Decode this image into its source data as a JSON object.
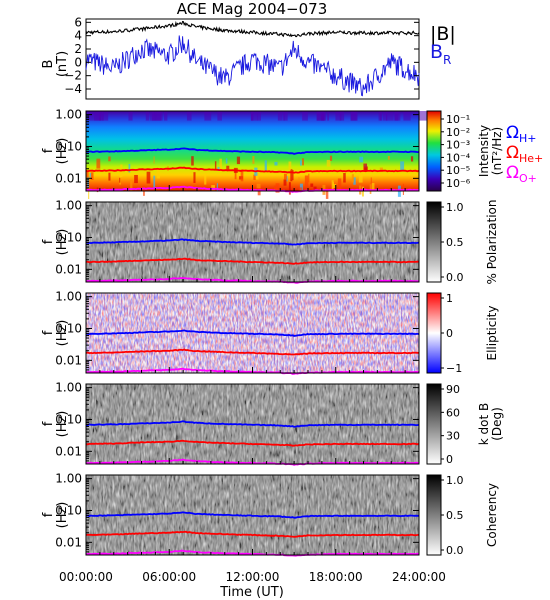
{
  "title": "ACE Mag 2004−073",
  "xlabel": "Time (UT)",
  "xticks": [
    "00:00:00",
    "06:00:00",
    "12:00:00",
    "18:00:00",
    "24:00:00"
  ],
  "colors": {
    "B_total": "#000000",
    "B_R": "#1a1adf",
    "Omega_H": "#0000ff",
    "Omega_He": "#ff0000",
    "Omega_O": "#ff00ff"
  },
  "legend": {
    "b_total": "|B|",
    "b_r": "B",
    "b_r_sub": "R",
    "omega": "Ω",
    "h_sub": "H+",
    "he_sub": "He+",
    "o_sub": "O+"
  },
  "freq_tick_labels": [
    "1.00",
    "0.10",
    "0.01"
  ],
  "panel1": {
    "ylabel_top": "B",
    "ylabel_bottom": "(nT)",
    "ytick_labels": [
      "6",
      "4",
      "2",
      "0",
      "−2",
      "−4"
    ]
  },
  "freq_panels": [
    {
      "id": "intensity",
      "ylabel_top": "f",
      "ylabel_bottom": "(Hz)",
      "colorbar_label": "Intensity",
      "colorbar_label2": "(nT²/Hz)",
      "colormap": "rainbow",
      "colorbar_ticks": [
        "10⁻¹",
        "10⁻²",
        "10⁻³",
        "10⁻⁴",
        "10⁻⁵",
        "10⁻⁶"
      ]
    },
    {
      "id": "polarization",
      "ylabel_top": "f",
      "ylabel_bottom": "(Hz)",
      "colorbar_label": "% Polarization",
      "colorbar_label2": "",
      "colormap": "gray",
      "colorbar_ticks": [
        "1.0",
        "0.5",
        "0.0"
      ]
    },
    {
      "id": "ellipticity",
      "ylabel_top": "f",
      "ylabel_bottom": "(Hz)",
      "colorbar_label": "Ellipticity",
      "colorbar_label2": "",
      "colormap": "bwr",
      "colorbar_ticks": [
        "1",
        "0",
        "−1"
      ]
    },
    {
      "id": "kdotb",
      "ylabel_top": "f",
      "ylabel_bottom": "(Hz)",
      "colorbar_label": "k dot B",
      "colorbar_label2": "(Deg)",
      "colormap": "gray",
      "colorbar_ticks": [
        "90",
        "60",
        "30",
        "0"
      ]
    },
    {
      "id": "coherency",
      "ylabel_top": "f",
      "ylabel_bottom": "(Hz)",
      "colorbar_label": "Coherency",
      "colorbar_label2": "",
      "colormap": "gray",
      "colorbar_ticks": [
        "1.0",
        "0.5",
        "0.0"
      ]
    }
  ],
  "chart_data": {
    "type": "line",
    "x_hours": [
      0,
      2,
      4,
      6,
      7,
      8,
      10,
      12,
      14,
      15,
      16,
      18,
      20,
      22,
      24
    ],
    "xlim": [
      0,
      24
    ],
    "B_total": [
      4.5,
      4.6,
      5.0,
      5.5,
      5.9,
      5.3,
      4.8,
      4.5,
      4.2,
      4.0,
      4.3,
      4.5,
      4.4,
      4.4,
      4.4
    ],
    "B_R": [
      0.5,
      -1.0,
      2.0,
      1.0,
      3.0,
      0.0,
      -2.5,
      0.5,
      -1.0,
      2.0,
      0.0,
      -2.0,
      -4.0,
      0.0,
      -2.0
    ],
    "B_ylim": [
      -5.5,
      6.5
    ],
    "B_yticks": [
      6,
      4,
      2,
      0,
      -2,
      -4
    ],
    "freq_ylim": [
      0.004,
      1.3
    ],
    "freq_yscale": "log",
    "Omega_H_Hz": [
      0.068,
      0.07,
      0.075,
      0.08,
      0.086,
      0.078,
      0.072,
      0.068,
      0.065,
      0.06,
      0.066,
      0.068,
      0.068,
      0.068,
      0.068
    ],
    "Omega_He_Hz": [
      0.017,
      0.0175,
      0.019,
      0.02,
      0.0215,
      0.0195,
      0.018,
      0.017,
      0.016,
      0.015,
      0.0165,
      0.017,
      0.017,
      0.017,
      0.017
    ],
    "Omega_O_Hz": [
      0.0043,
      0.0044,
      0.0047,
      0.005,
      0.0054,
      0.0049,
      0.0045,
      0.0043,
      0.0041,
      0.0038,
      0.0041,
      0.0043,
      0.0043,
      0.0043,
      0.0043
    ]
  }
}
